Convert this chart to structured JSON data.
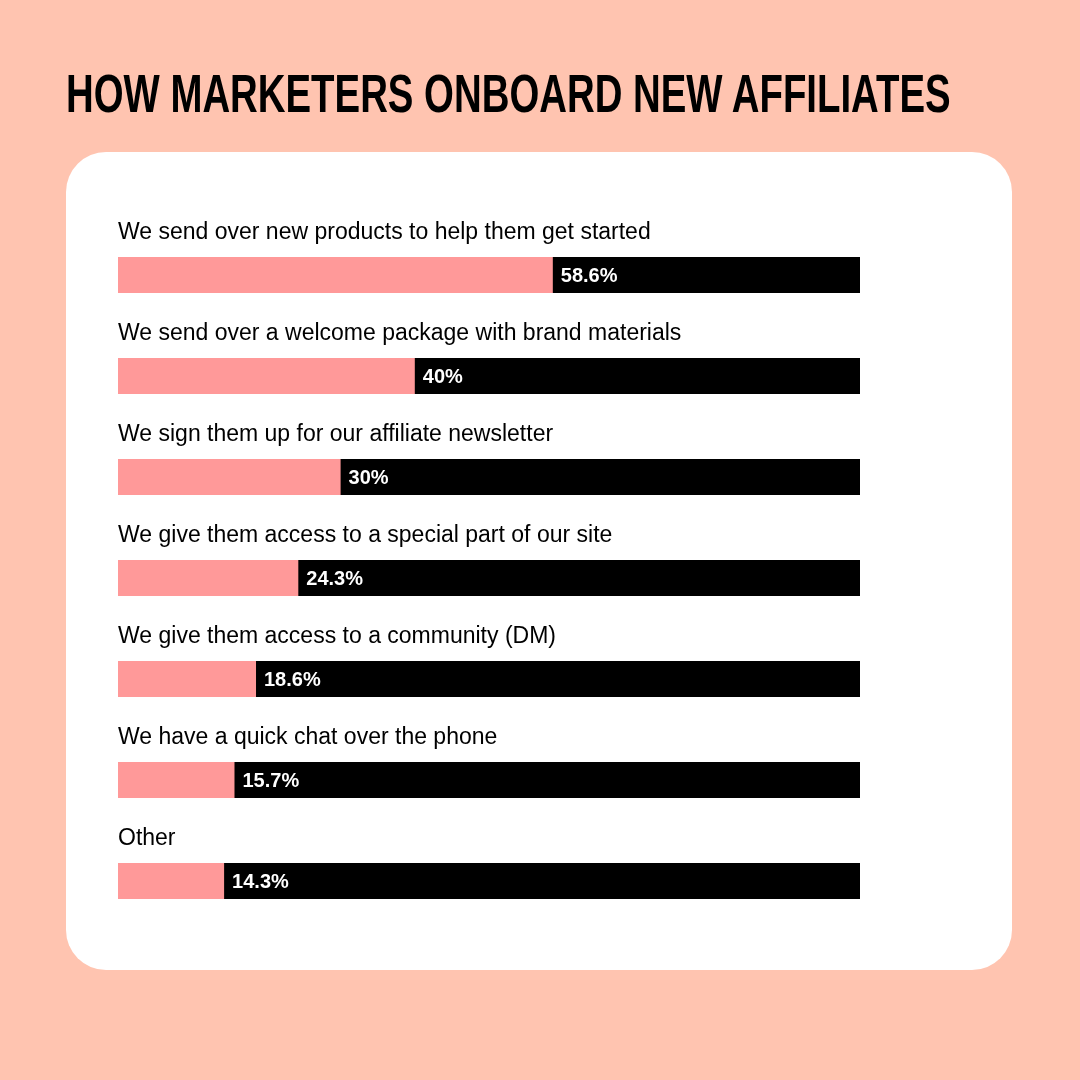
{
  "chart_data": {
    "type": "bar",
    "orientation": "horizontal",
    "title": "HOW MARKETERS ONBOARD NEW AFFILIATES",
    "categories": [
      "We send over new products to help them get started",
      "We send over a welcome package with brand materials",
      "We sign them up for our affiliate newsletter",
      "We give them access to a special part of our site",
      "We give them access to a community (DM)",
      "We have a quick chat over the phone",
      "Other"
    ],
    "series": [
      {
        "color": "#ff9999",
        "values": [
          58.6,
          40,
          30,
          24.3,
          18.6,
          15.7,
          14.3
        ],
        "value_labels": [
          "58.6%",
          "40%",
          "30%",
          "24.3%",
          "18.6%",
          "15.7%",
          "14.3%"
        ]
      }
    ],
    "xlim": [
      0,
      100
    ]
  }
}
